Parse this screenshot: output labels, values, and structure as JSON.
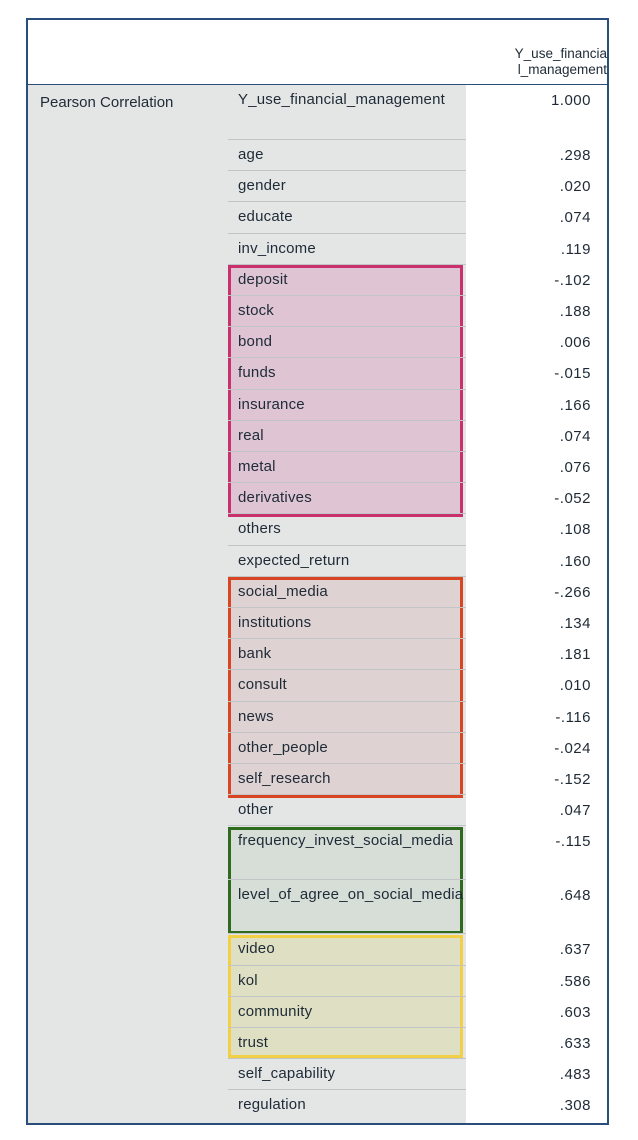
{
  "table": {
    "column_header_lines": [
      "Y_use_financia",
      "l_management"
    ],
    "statistic_label": "Pearson Correlation",
    "rows": [
      {
        "name": "Y_use_financial_management",
        "value": "1.000"
      },
      {
        "name": "age",
        "value": ".298"
      },
      {
        "name": "gender",
        "value": ".020"
      },
      {
        "name": "educate",
        "value": ".074"
      },
      {
        "name": "inv_income",
        "value": ".119"
      },
      {
        "name": "deposit",
        "value": "-.102"
      },
      {
        "name": "stock",
        "value": ".188"
      },
      {
        "name": "bond",
        "value": ".006"
      },
      {
        "name": "funds",
        "value": "-.015"
      },
      {
        "name": "insurance",
        "value": ".166"
      },
      {
        "name": "real",
        "value": ".074"
      },
      {
        "name": "metal",
        "value": ".076"
      },
      {
        "name": "derivatives",
        "value": "-.052"
      },
      {
        "name": "others",
        "value": ".108"
      },
      {
        "name": "expected_return",
        "value": ".160"
      },
      {
        "name": "social_media",
        "value": "-.266"
      },
      {
        "name": "institutions",
        "value": ".134"
      },
      {
        "name": "bank",
        "value": ".181"
      },
      {
        "name": "consult",
        "value": ".010"
      },
      {
        "name": "news",
        "value": "-.116"
      },
      {
        "name": "other_people",
        "value": "-.024"
      },
      {
        "name": "self_research",
        "value": "-.152"
      },
      {
        "name": "other",
        "value": ".047"
      },
      {
        "name": "frequency_invest_social_media",
        "value": "-.115"
      },
      {
        "name": "level_of_agree_on_social_media",
        "value": ".648"
      },
      {
        "name": "video",
        "value": ".637"
      },
      {
        "name": "kol",
        "value": ".586"
      },
      {
        "name": "community",
        "value": ".603"
      },
      {
        "name": "trust",
        "value": ".633"
      },
      {
        "name": "self_capability",
        "value": ".483"
      },
      {
        "name": "regulation",
        "value": ".308"
      }
    ]
  },
  "highlight_colors": {
    "assets": "#c8306e",
    "info_sources": "#d94423",
    "social_media": "#2f6b1e",
    "media_channels": "#f2d045"
  }
}
